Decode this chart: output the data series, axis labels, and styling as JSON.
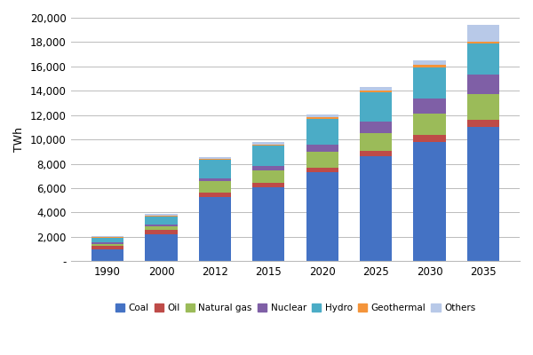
{
  "years": [
    "1990",
    "2000",
    "2012",
    "2015",
    "2020",
    "2025",
    "2030",
    "2035"
  ],
  "series": {
    "Coal": [
      1000,
      2200,
      5300,
      6100,
      7300,
      8600,
      9800,
      11000
    ],
    "Oil": [
      250,
      350,
      350,
      350,
      380,
      450,
      550,
      650
    ],
    "Natural gas": [
      150,
      300,
      900,
      1000,
      1300,
      1500,
      1800,
      2100
    ],
    "Nuclear": [
      150,
      200,
      250,
      350,
      600,
      900,
      1200,
      1600
    ],
    "Hydro": [
      400,
      650,
      1500,
      1700,
      2100,
      2400,
      2600,
      2500
    ],
    "Geothermal": [
      50,
      50,
      80,
      90,
      120,
      150,
      180,
      200
    ],
    "Others": [
      100,
      150,
      180,
      220,
      250,
      300,
      400,
      1400
    ]
  },
  "colors": {
    "Coal": "#4472C4",
    "Oil": "#BE4B48",
    "Natural gas": "#9BBB59",
    "Nuclear": "#7F5FA6",
    "Hydro": "#4BACC6",
    "Geothermal": "#F4943A",
    "Others": "#B8C9E8"
  },
  "ylabel": "TWh",
  "ylim": [
    0,
    20000
  ],
  "yticks": [
    0,
    2000,
    4000,
    6000,
    8000,
    10000,
    12000,
    14000,
    16000,
    18000,
    20000
  ],
  "ytick_labels": [
    "-",
    "2,000",
    "4,000",
    "6,000",
    "8,000",
    "10,000",
    "12,000",
    "14,000",
    "16,000",
    "18,000",
    "20,000"
  ],
  "background_color": "#FFFFFF",
  "grid_color": "#BBBBBB",
  "bar_width": 0.6
}
